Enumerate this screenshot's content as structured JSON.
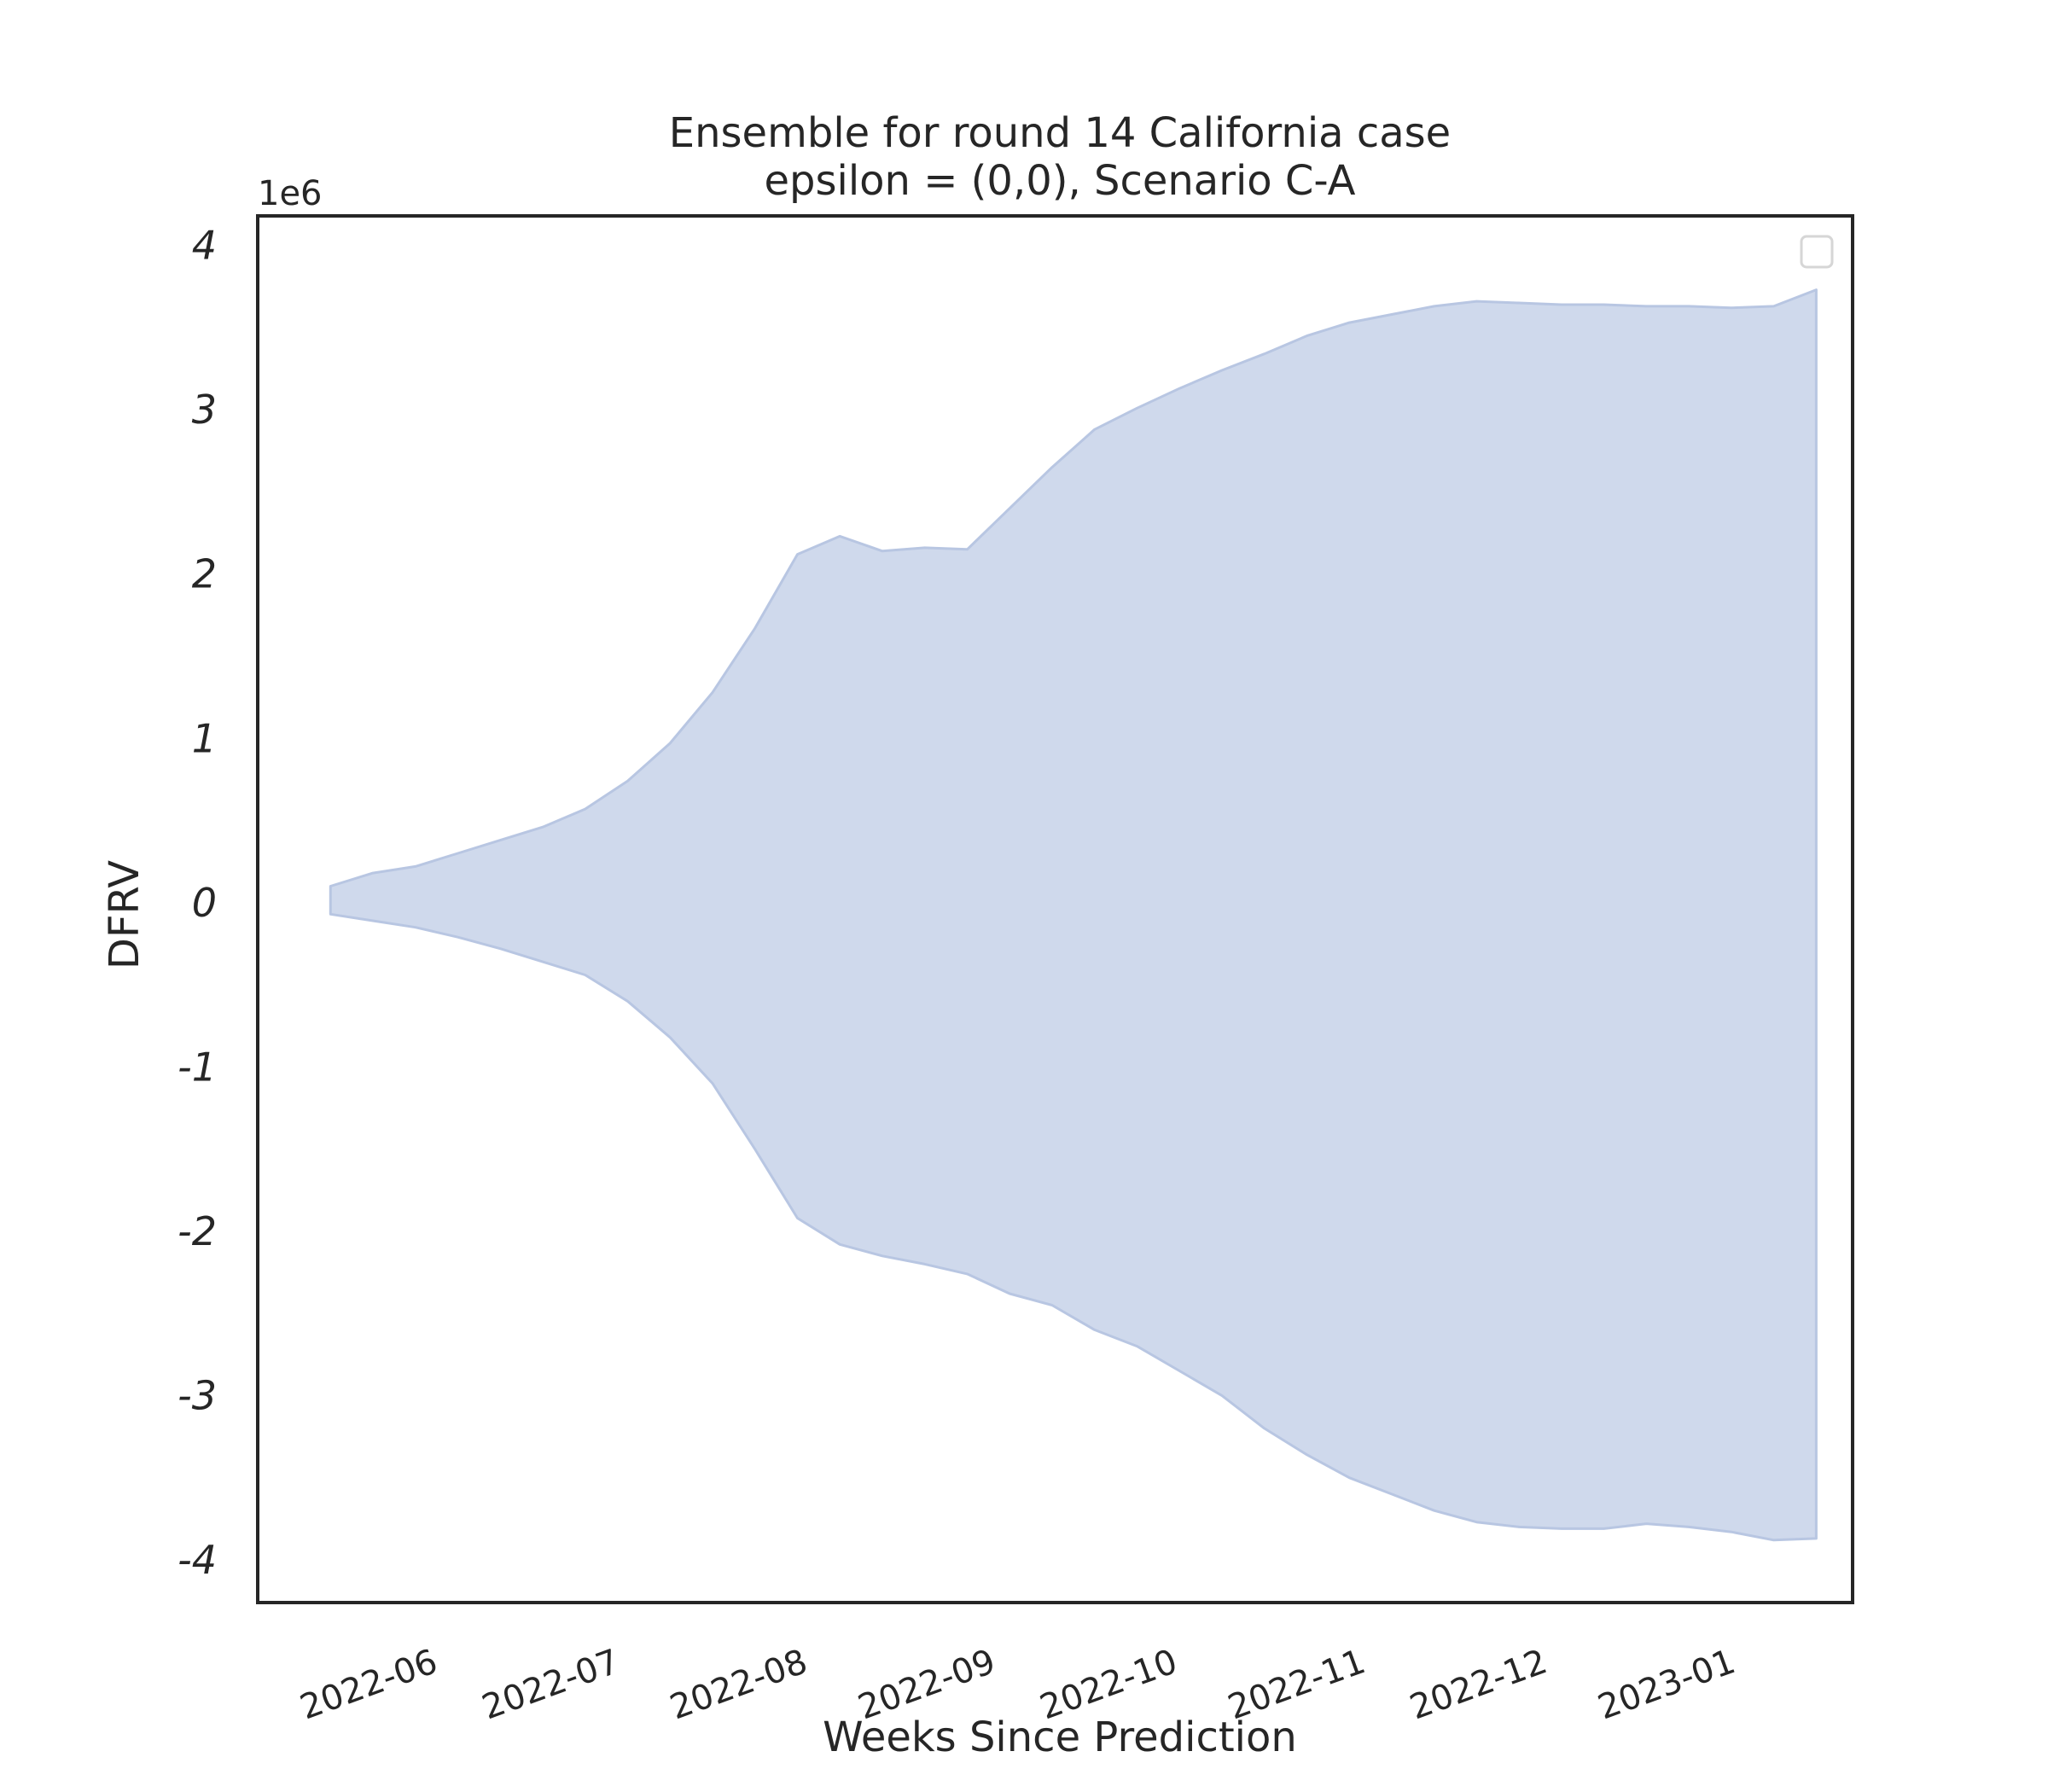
{
  "chart_data": {
    "type": "area",
    "title": "Ensemble for round 14 California case",
    "subtitle": "epsilon = (0,0), Scenario C-A",
    "xlabel": "Weeks Since Prediction",
    "ylabel": "DFRV",
    "y_offset_label": "1e6",
    "y_scale_multiplier": 1000000,
    "x_tick_labels": [
      "2022-06",
      "2022-07",
      "2022-08",
      "2022-09",
      "2022-10",
      "2022-11",
      "2022-12",
      "2023-01"
    ],
    "y_tick_labels": [
      "4",
      "3",
      "2",
      "1",
      "0",
      "-1",
      "-2",
      "-3",
      "-4"
    ],
    "y_ticks": [
      4,
      3,
      2,
      1,
      0,
      -1,
      -2,
      -3,
      -4
    ],
    "xlim": [
      "2022-05-02",
      "2023-01-20"
    ],
    "ylim": [
      -4.26,
      4.18
    ],
    "grid": false,
    "legend": "top-right (empty)",
    "fill_color": "#cfd9ec",
    "edge_color": "#b8c6e2",
    "band": {
      "x": [
        "2022-05-14",
        "2022-05-21",
        "2022-05-28",
        "2022-06-04",
        "2022-06-11",
        "2022-06-18",
        "2022-06-25",
        "2022-07-02",
        "2022-07-09",
        "2022-07-16",
        "2022-07-23",
        "2022-07-30",
        "2022-08-06",
        "2022-08-13",
        "2022-08-20",
        "2022-08-27",
        "2022-09-03",
        "2022-09-10",
        "2022-09-17",
        "2022-09-24",
        "2022-10-01",
        "2022-10-08",
        "2022-10-15",
        "2022-10-22",
        "2022-10-29",
        "2022-11-05",
        "2022-11-12",
        "2022-11-19",
        "2022-11-26",
        "2022-12-03",
        "2022-12-10",
        "2022-12-17",
        "2022-12-24",
        "2022-12-31",
        "2023-01-07"
      ],
      "upper": [
        0.1,
        0.18,
        0.22,
        0.3,
        0.38,
        0.46,
        0.57,
        0.74,
        0.97,
        1.28,
        1.67,
        2.12,
        2.23,
        2.14,
        2.16,
        2.15,
        2.4,
        2.65,
        2.88,
        3.01,
        3.13,
        3.24,
        3.34,
        3.45,
        3.53,
        3.58,
        3.63,
        3.66,
        3.65,
        3.64,
        3.64,
        3.63,
        3.63,
        3.62,
        3.63
      ],
      "lower": [
        -0.07,
        -0.11,
        -0.15,
        -0.21,
        -0.28,
        -0.36,
        -0.44,
        -0.6,
        -0.82,
        -1.1,
        -1.5,
        -1.92,
        -2.08,
        -2.15,
        -2.2,
        -2.26,
        -2.38,
        -2.45,
        -2.6,
        -2.7,
        -2.85,
        -3.0,
        -3.2,
        -3.36,
        -3.5,
        -3.6,
        -3.7,
        -3.77,
        -3.8,
        -3.81,
        -3.81,
        -3.78,
        -3.8,
        -3.83,
        -3.88
      ]
    },
    "band_end_point": {
      "x": "2023-01-14",
      "upper": 3.73,
      "lower": -3.87
    }
  }
}
